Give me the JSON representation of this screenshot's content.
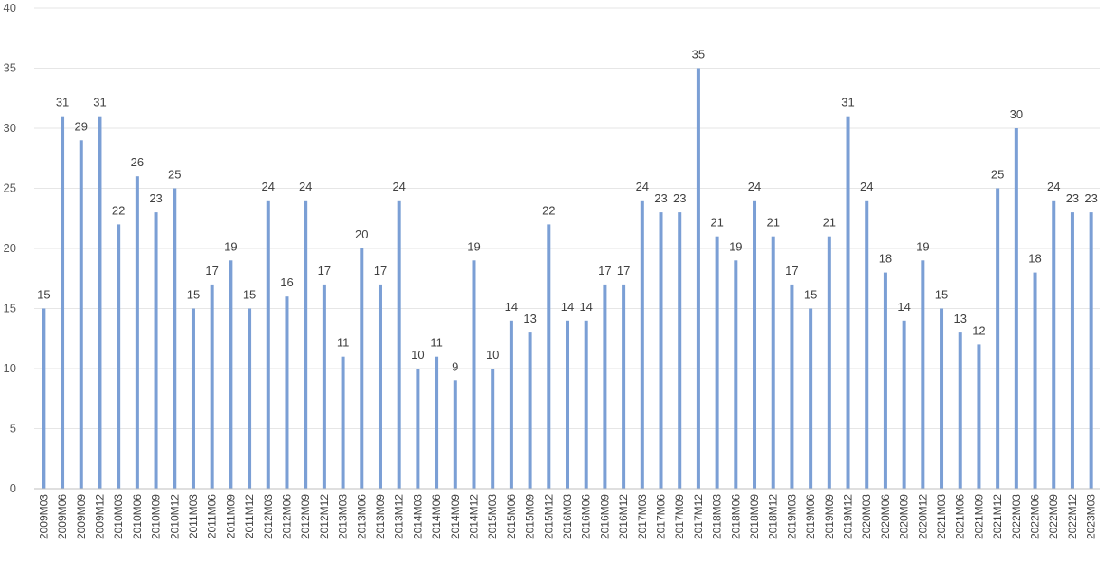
{
  "chart_data": {
    "type": "bar",
    "title": "",
    "xlabel": "",
    "ylabel": "",
    "ylim": [
      0,
      40
    ],
    "yticks": [
      0,
      5,
      10,
      15,
      20,
      25,
      30,
      35,
      40
    ],
    "grid": true,
    "data_labels": true,
    "bar_color": "#7b9fd5",
    "categories": [
      "2009M03",
      "2009M06",
      "2009M09",
      "2009M12",
      "2010M03",
      "2010M06",
      "2010M09",
      "2010M12",
      "2011M03",
      "2011M06",
      "2011M09",
      "2011M12",
      "2012M03",
      "2012M06",
      "2012M09",
      "2012M12",
      "2013M03",
      "2013M06",
      "2013M09",
      "2013M12",
      "2014M03",
      "2014M06",
      "2014M09",
      "2014M12",
      "2015M03",
      "2015M06",
      "2015M09",
      "2015M12",
      "2016M03",
      "2016M06",
      "2016M09",
      "2016M12",
      "2017M03",
      "2017M06",
      "2017M09",
      "2017M12",
      "2018M03",
      "2018M06",
      "2018M09",
      "2018M12",
      "2019M03",
      "2019M06",
      "2019M09",
      "2019M12",
      "2020M03",
      "2020M06",
      "2020M09",
      "2020M12",
      "2021M03",
      "2021M06",
      "2021M09",
      "2021M12",
      "2022M03",
      "2022M06",
      "2022M09",
      "2022M12",
      "2023M03"
    ],
    "values": [
      15,
      31,
      29,
      31,
      22,
      26,
      23,
      25,
      15,
      17,
      19,
      15,
      24,
      16,
      24,
      17,
      11,
      20,
      17,
      24,
      10,
      11,
      9,
      19,
      10,
      14,
      13,
      22,
      14,
      14,
      17,
      17,
      24,
      23,
      23,
      35,
      21,
      19,
      24,
      21,
      17,
      15,
      21,
      31,
      24,
      18,
      14,
      19,
      15,
      13,
      12,
      25,
      30,
      18,
      24,
      23,
      23
    ]
  }
}
